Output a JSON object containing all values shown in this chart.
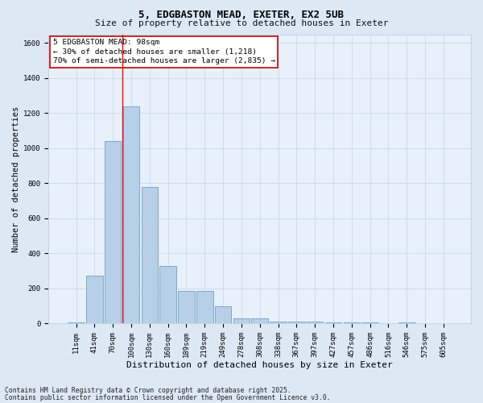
{
  "title_line1": "5, EDGBASTON MEAD, EXETER, EX2 5UB",
  "title_line2": "Size of property relative to detached houses in Exeter",
  "xlabel": "Distribution of detached houses by size in Exeter",
  "ylabel": "Number of detached properties",
  "categories": [
    "11sqm",
    "41sqm",
    "70sqm",
    "100sqm",
    "130sqm",
    "160sqm",
    "189sqm",
    "219sqm",
    "249sqm",
    "278sqm",
    "308sqm",
    "338sqm",
    "367sqm",
    "397sqm",
    "427sqm",
    "457sqm",
    "486sqm",
    "516sqm",
    "546sqm",
    "575sqm",
    "605sqm"
  ],
  "values": [
    5,
    275,
    1040,
    1240,
    780,
    330,
    185,
    185,
    100,
    30,
    30,
    10,
    10,
    10,
    5,
    5,
    5,
    2,
    5,
    2,
    2
  ],
  "bar_color": "#b8cfe8",
  "bar_edgecolor": "#7aaad0",
  "red_line_x": 2.5,
  "annotation_text": "5 EDGBASTON MEAD: 98sqm\n← 30% of detached houses are smaller (1,218)\n70% of semi-detached houses are larger (2,835) →",
  "annotation_box_facecolor": "#ffffff",
  "annotation_box_edgecolor": "#cc0000",
  "ylim": [
    0,
    1650
  ],
  "yticks": [
    0,
    200,
    400,
    600,
    800,
    1000,
    1200,
    1400,
    1600
  ],
  "footnote_line1": "Contains HM Land Registry data © Crown copyright and database right 2025.",
  "footnote_line2": "Contains public sector information licensed under the Open Government Licence v3.0.",
  "bg_color": "#dde8f5",
  "plot_bg_color": "#e8f0fa",
  "grid_color": "#c5d5e8",
  "title1_fontsize": 9,
  "title2_fontsize": 8,
  "tick_fontsize": 6.5,
  "ylabel_fontsize": 7.5,
  "xlabel_fontsize": 8,
  "annot_fontsize": 6.8,
  "footnote_fontsize": 5.8
}
